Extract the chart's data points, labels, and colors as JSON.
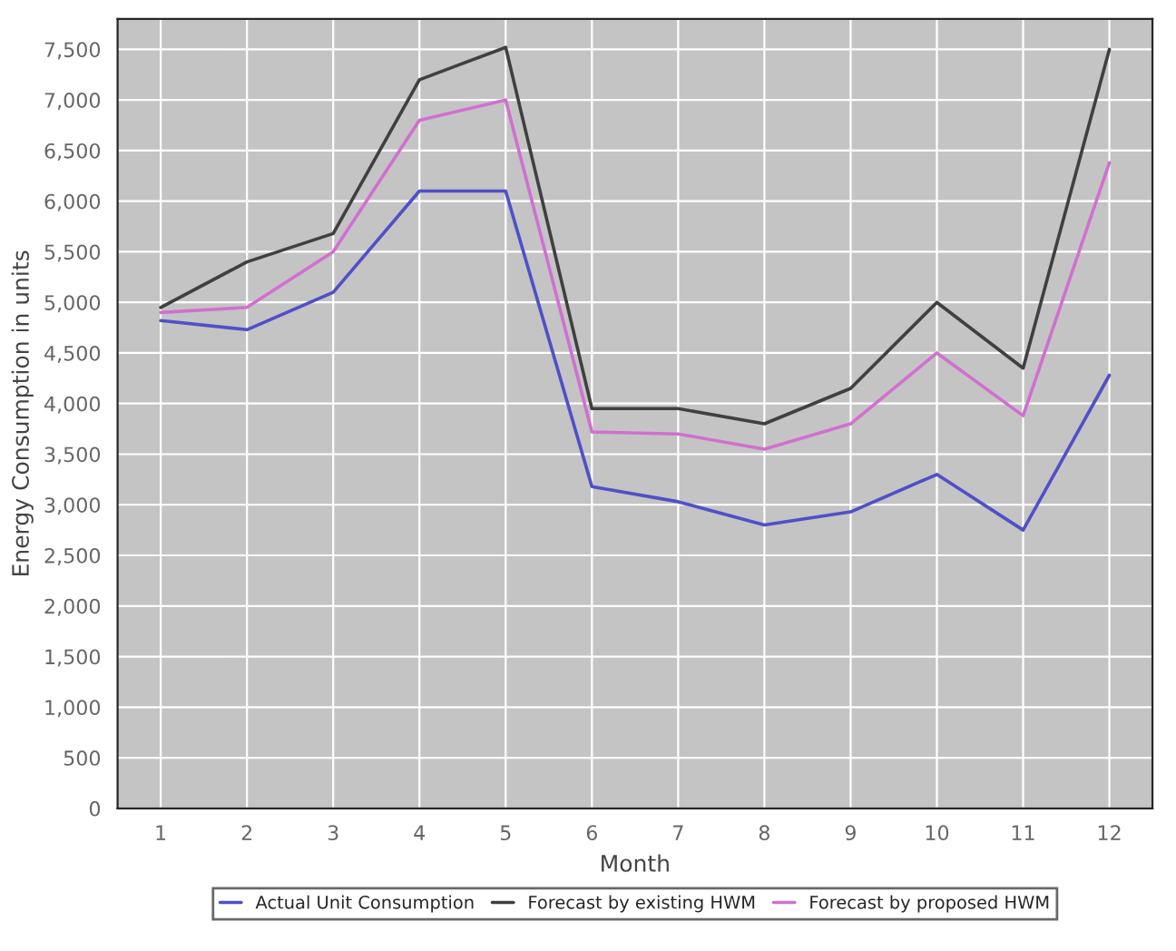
{
  "chart_data": {
    "type": "line",
    "xlabel": "Month",
    "ylabel": "Energy Consumption in units",
    "x": [
      1,
      2,
      3,
      4,
      5,
      6,
      7,
      8,
      9,
      10,
      11,
      12
    ],
    "series": [
      {
        "name": "Actual Unit Consumption",
        "color": "#5050c8",
        "values": [
          4820,
          4730,
          5100,
          6100,
          6100,
          3180,
          3030,
          2800,
          2930,
          3300,
          2750,
          4280
        ]
      },
      {
        "name": "Forecast by existing HWM",
        "color": "#404040",
        "values": [
          4950,
          5400,
          5680,
          7200,
          7520,
          3950,
          3950,
          3800,
          4150,
          5000,
          4350,
          7500
        ]
      },
      {
        "name": "Forecast by proposed HWM",
        "color": "#d070d0",
        "values": [
          4900,
          4950,
          5500,
          6800,
          7000,
          3720,
          3700,
          3550,
          3800,
          4500,
          3880,
          6380
        ]
      }
    ],
    "xlim": [
      0.5,
      12.5
    ],
    "xticks": [
      1,
      2,
      3,
      4,
      5,
      6,
      7,
      8,
      9,
      10,
      11,
      12
    ],
    "ylim": [
      0,
      7800
    ],
    "yticks": [
      {
        "value": 0,
        "label": "0"
      },
      {
        "value": 500,
        "label": "500"
      },
      {
        "value": 1000,
        "label": "1,000"
      },
      {
        "value": 1500,
        "label": "1,500"
      },
      {
        "value": 2000,
        "label": "2,000"
      },
      {
        "value": 2500,
        "label": "2,500"
      },
      {
        "value": 3000,
        "label": "3,000"
      },
      {
        "value": 3500,
        "label": "3,500"
      },
      {
        "value": 4000,
        "label": "4,000"
      },
      {
        "value": 4500,
        "label": "4,500"
      },
      {
        "value": 5000,
        "label": "5,000"
      },
      {
        "value": 5500,
        "label": "5,500"
      },
      {
        "value": 6000,
        "label": "6,000"
      },
      {
        "value": 6500,
        "label": "6,500"
      },
      {
        "value": 7000,
        "label": "7,000"
      },
      {
        "value": 7500,
        "label": "7,500"
      }
    ],
    "grid": true,
    "legend": "bottom",
    "marker": "none",
    "line_style": "solid"
  }
}
